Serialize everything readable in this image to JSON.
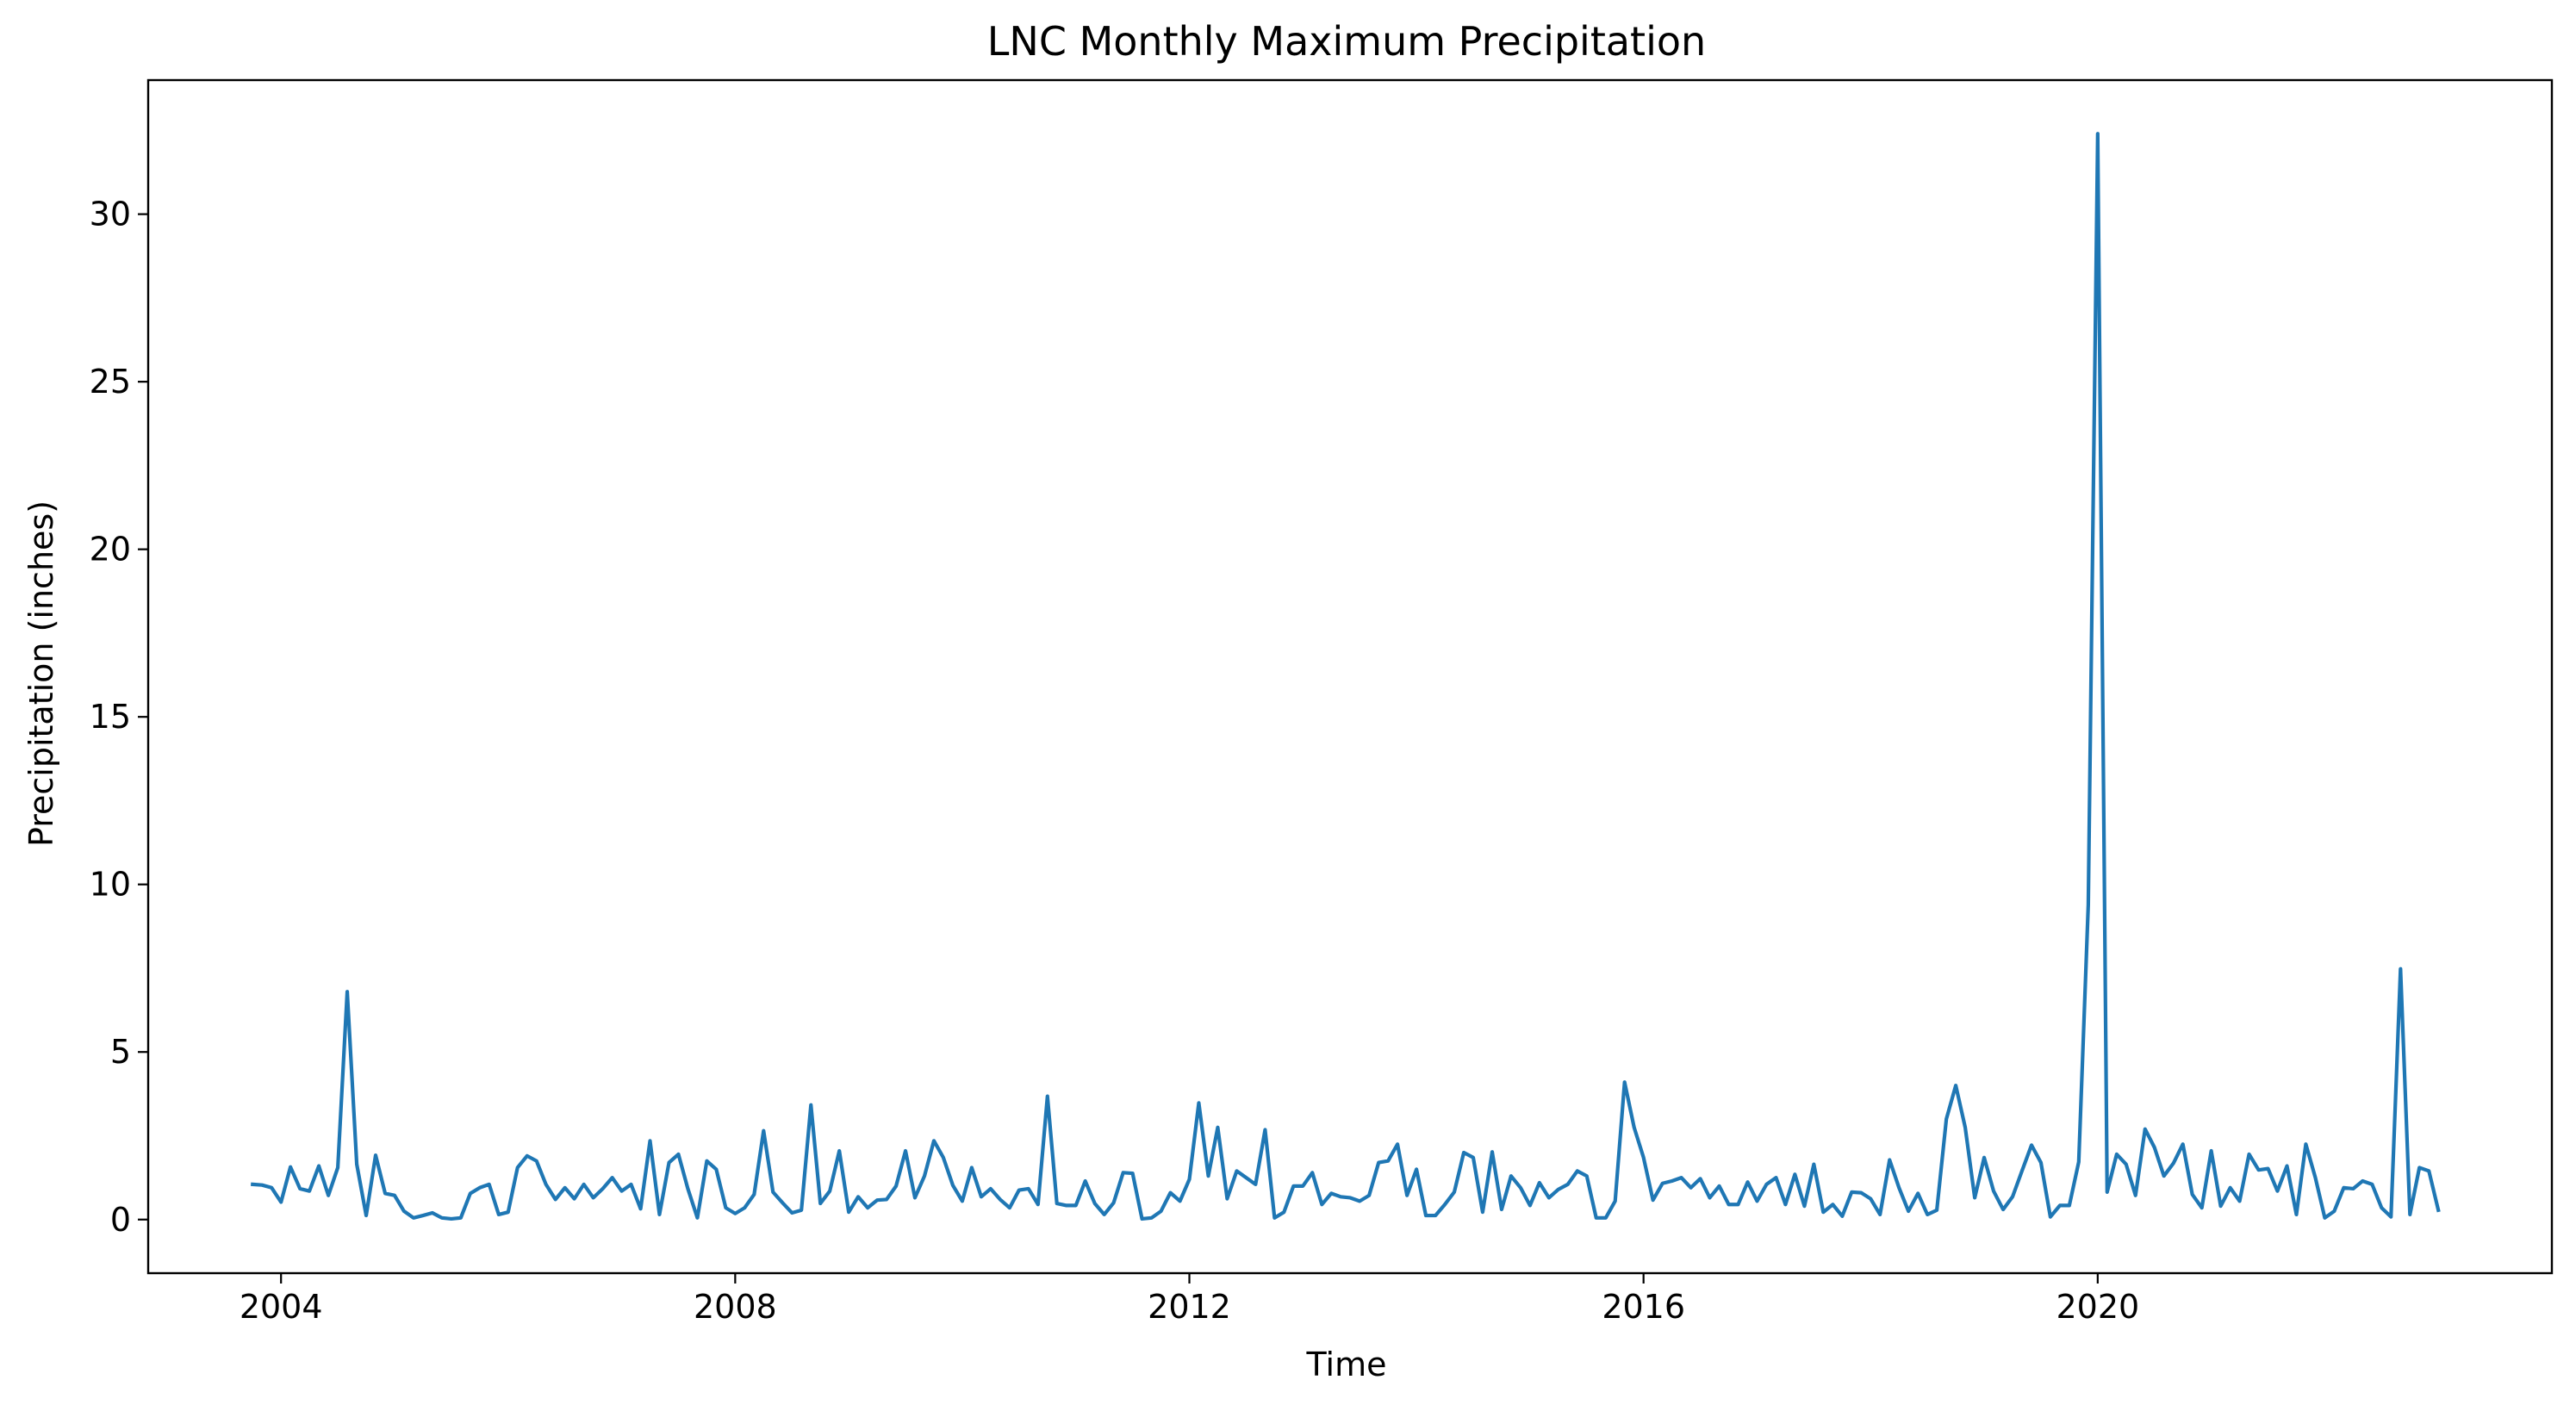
{
  "chart_data": {
    "type": "line",
    "title": "LNC Monthly Maximum Precipitation",
    "xlabel": "Time",
    "ylabel": "Precipitation (inches)",
    "xlim": [
      2002.83,
      2024.0
    ],
    "ylim": [
      -1.6,
      34.0
    ],
    "xticks": [
      2004,
      2008,
      2012,
      2016,
      2020
    ],
    "xtick_labels": [
      "2004",
      "2008",
      "2012",
      "2016",
      "2020"
    ],
    "yticks": [
      0,
      5,
      10,
      15,
      20,
      25,
      30
    ],
    "ytick_labels": [
      "0",
      "5",
      "10",
      "15",
      "20",
      "25",
      "30"
    ],
    "grid": false,
    "legend": "none",
    "series": [
      {
        "color": "#1f77b4",
        "x": [
          2003.75,
          2003.833,
          2003.917,
          2004.0,
          2004.083,
          2004.167,
          2004.25,
          2004.333,
          2004.417,
          2004.5,
          2004.583,
          2004.667,
          2004.75,
          2004.833,
          2004.917,
          2005.0,
          2005.083,
          2005.167,
          2005.25,
          2005.333,
          2005.417,
          2005.5,
          2005.583,
          2005.667,
          2005.75,
          2005.833,
          2005.917,
          2006.0,
          2006.083,
          2006.167,
          2006.25,
          2006.333,
          2006.417,
          2006.5,
          2006.583,
          2006.667,
          2006.75,
          2006.833,
          2006.917,
          2007.0,
          2007.083,
          2007.167,
          2007.25,
          2007.333,
          2007.417,
          2007.5,
          2007.583,
          2007.667,
          2007.75,
          2007.833,
          2007.917,
          2008.0,
          2008.083,
          2008.167,
          2008.25,
          2008.333,
          2008.417,
          2008.5,
          2008.583,
          2008.667,
          2008.75,
          2008.833,
          2008.917,
          2009.0,
          2009.083,
          2009.167,
          2009.25,
          2009.333,
          2009.417,
          2009.5,
          2009.583,
          2009.667,
          2009.75,
          2009.833,
          2009.917,
          2010.0,
          2010.083,
          2010.167,
          2010.25,
          2010.333,
          2010.417,
          2010.5,
          2010.583,
          2010.667,
          2010.75,
          2010.833,
          2010.917,
          2011.0,
          2011.083,
          2011.167,
          2011.25,
          2011.333,
          2011.417,
          2011.5,
          2011.583,
          2011.667,
          2011.75,
          2011.833,
          2011.917,
          2012.0,
          2012.083,
          2012.167,
          2012.25,
          2012.333,
          2012.417,
          2012.5,
          2012.583,
          2012.667,
          2012.75,
          2012.833,
          2012.917,
          2013.0,
          2013.083,
          2013.167,
          2013.25,
          2013.333,
          2013.417,
          2013.5,
          2013.583,
          2013.667,
          2013.75,
          2013.833,
          2013.917,
          2014.0,
          2014.083,
          2014.167,
          2014.25,
          2014.333,
          2014.417,
          2014.5,
          2014.583,
          2014.667,
          2014.75,
          2014.833,
          2014.917,
          2015.0,
          2015.083,
          2015.167,
          2015.25,
          2015.333,
          2015.417,
          2015.5,
          2015.583,
          2015.667,
          2015.75,
          2015.833,
          2015.917,
          2016.0,
          2016.083,
          2016.167,
          2016.25,
          2016.333,
          2016.417,
          2016.5,
          2016.583,
          2016.667,
          2016.75,
          2016.833,
          2016.917,
          2017.0,
          2017.083,
          2017.167,
          2017.25,
          2017.333,
          2017.417,
          2017.5,
          2017.583,
          2017.667,
          2017.75,
          2017.833,
          2017.917,
          2018.0,
          2018.083,
          2018.167,
          2018.25,
          2018.333,
          2018.417,
          2018.5,
          2018.583,
          2018.667,
          2018.75,
          2018.833,
          2018.917,
          2019.0,
          2019.083,
          2019.167,
          2019.25,
          2019.333,
          2019.417,
          2019.5,
          2019.583,
          2019.667,
          2019.75,
          2019.833,
          2019.917,
          2020.0,
          2020.083,
          2020.167,
          2020.25,
          2020.333,
          2020.417,
          2020.5,
          2020.583,
          2020.667,
          2020.75,
          2020.833,
          2020.917,
          2021.0,
          2021.083,
          2021.167,
          2021.25,
          2021.333,
          2021.417,
          2021.5,
          2021.583,
          2021.667,
          2021.75,
          2021.833,
          2021.917,
          2022.0,
          2022.083,
          2022.167,
          2022.25,
          2022.333,
          2022.417,
          2022.5,
          2022.583,
          2022.667,
          2022.75,
          2022.833,
          2022.917,
          2023.0
        ],
        "y": [
          1.05,
          1.03,
          0.95,
          0.52,
          1.57,
          0.92,
          0.85,
          1.6,
          0.72,
          1.55,
          6.8,
          1.65,
          0.12,
          1.92,
          0.78,
          0.72,
          0.25,
          0.05,
          0.12,
          0.2,
          0.05,
          0.02,
          0.05,
          0.78,
          0.95,
          1.05,
          0.15,
          0.22,
          1.55,
          1.9,
          1.75,
          1.05,
          0.6,
          0.95,
          0.62,
          1.05,
          0.65,
          0.92,
          1.25,
          0.85,
          1.05,
          0.32,
          2.35,
          0.15,
          1.7,
          1.95,
          0.92,
          0.05,
          1.75,
          1.5,
          0.35,
          0.18,
          0.35,
          0.75,
          2.65,
          0.82,
          0.5,
          0.2,
          0.28,
          3.42,
          0.48,
          0.85,
          2.05,
          0.22,
          0.68,
          0.35,
          0.58,
          0.6,
          1.0,
          2.05,
          0.65,
          1.3,
          2.35,
          1.85,
          1.02,
          0.55,
          1.55,
          0.68,
          0.92,
          0.6,
          0.35,
          0.88,
          0.92,
          0.45,
          3.68,
          0.48,
          0.42,
          0.42,
          1.15,
          0.48,
          0.15,
          0.5,
          1.4,
          1.38,
          0.02,
          0.05,
          0.25,
          0.8,
          0.55,
          1.2,
          3.48,
          1.3,
          2.75,
          0.62,
          1.45,
          1.25,
          1.05,
          2.68,
          0.05,
          0.22,
          1.0,
          1.0,
          1.4,
          0.45,
          0.78,
          0.68,
          0.65,
          0.55,
          0.72,
          1.7,
          1.75,
          2.25,
          0.72,
          1.5,
          0.12,
          0.12,
          0.45,
          0.82,
          2.0,
          1.85,
          0.22,
          2.02,
          0.3,
          1.3,
          0.95,
          0.42,
          1.1,
          0.65,
          0.9,
          1.05,
          1.45,
          1.3,
          0.05,
          0.05,
          0.55,
          4.1,
          2.75,
          1.85,
          0.58,
          1.08,
          1.15,
          1.25,
          0.95,
          1.22,
          0.65,
          1.0,
          0.45,
          0.45,
          1.12,
          0.55,
          1.05,
          1.25,
          0.45,
          1.35,
          0.4,
          1.65,
          0.22,
          0.45,
          0.1,
          0.82,
          0.8,
          0.62,
          0.15,
          1.78,
          0.95,
          0.25,
          0.78,
          0.15,
          0.28,
          3.0,
          4.0,
          2.75,
          0.65,
          1.85,
          0.85,
          0.3,
          0.68,
          1.45,
          2.22,
          1.7,
          0.08,
          0.42,
          0.42,
          1.72,
          9.4,
          32.4,
          0.82,
          1.95,
          1.65,
          0.72,
          2.7,
          2.15,
          1.3,
          1.68,
          2.25,
          0.75,
          0.35,
          2.05,
          0.4,
          0.95,
          0.55,
          1.95,
          1.48,
          1.52,
          0.85,
          1.6,
          0.15,
          2.25,
          1.25,
          0.05,
          0.25,
          0.95,
          0.92,
          1.15,
          1.05,
          0.35,
          0.08,
          7.48,
          0.15,
          1.55,
          1.45,
          0.28
        ]
      }
    ]
  }
}
